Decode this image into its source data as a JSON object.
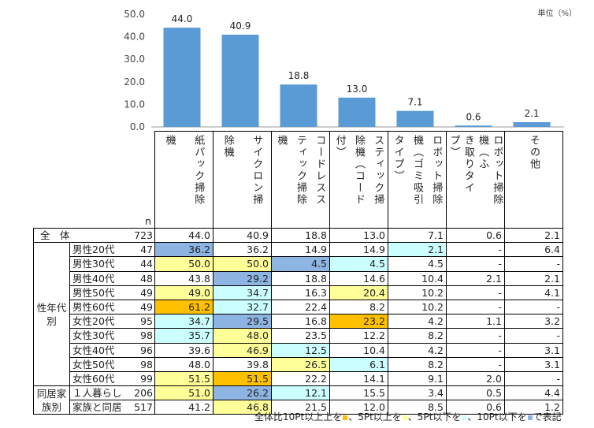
{
  "unit_label": "単位（%）",
  "legend_text": {
    "prefix": "全体比10Pt以上上を",
    "after_gold": "、5Pt以上を",
    "after_yellow": "、5Pt以下を",
    "after_cyan": "、10Pt以下を",
    "after_blue": "で表記"
  },
  "colors": {
    "bar": "#5b9bd5",
    "plus10": "#ffc000",
    "plus5": "#ffff99",
    "minus5": "#ccffff",
    "minus10": "#8db4e2"
  },
  "chart_data": {
    "type": "bar",
    "categories": [
      "紙パック掃除機",
      "サイクロン掃除機",
      "コードレススティック掃除機",
      "スティック掃除機（コード付）",
      "ロボット掃除機（ゴミ吸引タイプ）",
      "ロボット掃除機（ふき取りタイプ）",
      "その他"
    ],
    "values": [
      44.0,
      40.9,
      18.8,
      13.0,
      7.1,
      0.6,
      2.1
    ],
    "ylim": [
      0,
      50
    ],
    "yticks": [
      "0.0",
      "10.0",
      "20.0",
      "30.0",
      "40.0",
      "50.0"
    ],
    "ytick_values": [
      0,
      10,
      20,
      30,
      40,
      50
    ],
    "value_labels": [
      "44.0",
      "40.9",
      "18.8",
      "13.0",
      "7.1",
      "0.6",
      "2.1"
    ],
    "grid": false
  },
  "table": {
    "n_label": "n",
    "headers": [
      [
        "機",
        "紙パック掃除"
      ],
      [
        "除機",
        "サイクロン掃"
      ],
      [
        "機",
        "ティック掃除",
        "コードレスス"
      ],
      [
        "付）",
        "除機（コード",
        "スティック掃"
      ],
      [
        "タイプ）",
        "機（ゴミ吸引",
        "ロボット掃除"
      ],
      [
        "プ）",
        "き取りタイ",
        "機（ふ",
        "ロボット掃除"
      ],
      [
        "その他"
      ]
    ],
    "total_row": {
      "label": "全　体",
      "n": "723",
      "values": [
        "44.0",
        "40.9",
        "18.8",
        "13.0",
        "7.1",
        "0.6",
        "2.1"
      ]
    },
    "groups": [
      {
        "label": "性年代別",
        "rows": [
          {
            "label": "男性20代",
            "n": "47",
            "values": [
              "36.2",
              "36.2",
              "14.9",
              "14.9",
              "2.1",
              "-",
              "6.4"
            ],
            "marks": [
              "m10",
              "",
              "",
              "",
              "m5",
              "",
              ""
            ]
          },
          {
            "label": "男性30代",
            "n": "44",
            "values": [
              "50.0",
              "50.0",
              "4.5",
              "4.5",
              "4.5",
              "-",
              "-"
            ],
            "marks": [
              "p5",
              "p5",
              "m10",
              "m5",
              "",
              "",
              ""
            ]
          },
          {
            "label": "男性40代",
            "n": "48",
            "values": [
              "43.8",
              "29.2",
              "18.8",
              "14.6",
              "10.4",
              "2.1",
              "2.1"
            ],
            "marks": [
              "",
              "m10",
              "",
              "",
              "",
              "",
              ""
            ]
          },
          {
            "label": "男性50代",
            "n": "49",
            "values": [
              "49.0",
              "34.7",
              "16.3",
              "20.4",
              "10.2",
              "-",
              "4.1"
            ],
            "marks": [
              "p5",
              "m5",
              "",
              "p5",
              "",
              "",
              ""
            ]
          },
          {
            "label": "男性60代",
            "n": "49",
            "values": [
              "61.2",
              "32.7",
              "22.4",
              "8.2",
              "10.2",
              "-",
              "-"
            ],
            "marks": [
              "p10",
              "m5",
              "",
              "",
              "",
              "",
              ""
            ]
          },
          {
            "label": "女性20代",
            "n": "95",
            "values": [
              "34.7",
              "29.5",
              "16.8",
              "23.2",
              "4.2",
              "1.1",
              "3.2"
            ],
            "marks": [
              "m5",
              "m10",
              "",
              "p10",
              "",
              "",
              ""
            ]
          },
          {
            "label": "女性30代",
            "n": "98",
            "values": [
              "35.7",
              "48.0",
              "23.5",
              "12.2",
              "8.2",
              "-",
              "-"
            ],
            "marks": [
              "m5",
              "p5",
              "",
              "",
              "",
              "",
              ""
            ]
          },
          {
            "label": "女性40代",
            "n": "96",
            "values": [
              "39.6",
              "46.9",
              "12.5",
              "10.4",
              "4.2",
              "-",
              "3.1"
            ],
            "marks": [
              "",
              "p5",
              "m5",
              "",
              "",
              "",
              ""
            ]
          },
          {
            "label": "女性50代",
            "n": "98",
            "values": [
              "48.0",
              "39.8",
              "26.5",
              "6.1",
              "8.2",
              "-",
              "3.1"
            ],
            "marks": [
              "",
              "",
              "p5",
              "m5",
              "",
              "",
              ""
            ]
          },
          {
            "label": "女性60代",
            "n": "99",
            "values": [
              "51.5",
              "51.5",
              "22.2",
              "14.1",
              "9.1",
              "2.0",
              "-"
            ],
            "marks": [
              "p5",
              "p10",
              "",
              "",
              "",
              "",
              ""
            ]
          }
        ]
      },
      {
        "label": "同居家族別",
        "rows": [
          {
            "label": "１人暮らし",
            "n": "206",
            "values": [
              "51.0",
              "26.2",
              "12.1",
              "15.5",
              "3.4",
              "0.5",
              "4.4"
            ],
            "marks": [
              "p5",
              "m10",
              "m5",
              "",
              "",
              "",
              ""
            ]
          },
          {
            "label": "家族と同居",
            "n": "517",
            "values": [
              "41.2",
              "46.8",
              "21.5",
              "12.0",
              "8.5",
              "0.6",
              "1.2"
            ],
            "marks": [
              "",
              "p5",
              "",
              "",
              "",
              "",
              ""
            ]
          }
        ]
      }
    ]
  }
}
